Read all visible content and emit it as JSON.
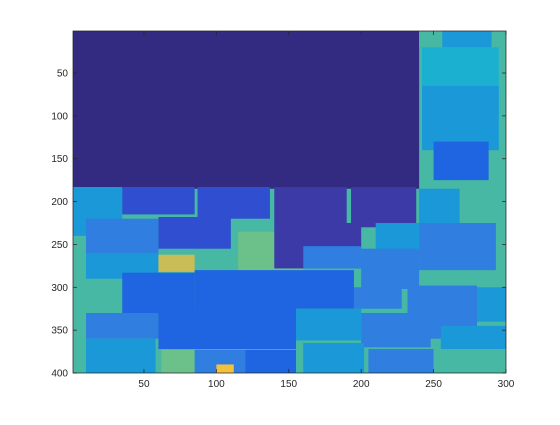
{
  "chart_data": {
    "type": "heatmap",
    "title": "",
    "xlabel": "",
    "ylabel": "",
    "xlim": [
      1,
      300
    ],
    "ylim": [
      1,
      400
    ],
    "y_reversed": true,
    "x_ticks": [
      50,
      100,
      150,
      200,
      250,
      300
    ],
    "x_tick_labels": [
      "50",
      "100",
      "150",
      "200",
      "250",
      "300"
    ],
    "y_ticks": [
      50,
      100,
      150,
      200,
      250,
      300,
      350,
      400
    ],
    "y_tick_labels": [
      "50",
      "100",
      "150",
      "200",
      "250",
      "300",
      "350",
      "400"
    ],
    "colormap": "parula",
    "grid": false,
    "legend": "none",
    "palette": {
      "dark-indigo": "#332a82",
      "indigo": "#3b3aa6",
      "royal-blue": "#2f4fd0",
      "bright-blue": "#1f64e0",
      "azure": "#2f7ee0",
      "cyan-blue": "#1a98d8",
      "teal-cyan": "#1cb0d0",
      "sea-green": "#47b8a4",
      "mint-green": "#6cc08a",
      "khaki": "#c9bd57",
      "yellow-orange": "#f2c23f"
    },
    "regions": [
      {
        "x": [
          1,
          300
        ],
        "y": [
          1,
          400
        ],
        "color": "sea-green"
      },
      {
        "x": [
          1,
          240
        ],
        "y": [
          1,
          185
        ],
        "color": "dark-indigo"
      },
      {
        "x": [
          240,
          300
        ],
        "y": [
          1,
          20
        ],
        "color": "sea-green"
      },
      {
        "x": [
          256,
          290
        ],
        "y": [
          1,
          20
        ],
        "color": "cyan-blue"
      },
      {
        "x": [
          242,
          295
        ],
        "y": [
          20,
          100
        ],
        "color": "teal-cyan"
      },
      {
        "x": [
          242,
          295
        ],
        "y": [
          65,
          140
        ],
        "color": "cyan-blue"
      },
      {
        "x": [
          250,
          288
        ],
        "y": [
          130,
          175
        ],
        "color": "bright-blue"
      },
      {
        "x": [
          1,
          35
        ],
        "y": [
          183,
          240
        ],
        "color": "cyan-blue"
      },
      {
        "x": [
          35,
          85
        ],
        "y": [
          183,
          215
        ],
        "color": "royal-blue"
      },
      {
        "x": [
          87,
          137
        ],
        "y": [
          183,
          220
        ],
        "color": "royal-blue"
      },
      {
        "x": [
          140,
          190
        ],
        "y": [
          183,
          225
        ],
        "color": "indigo"
      },
      {
        "x": [
          193,
          238
        ],
        "y": [
          183,
          230
        ],
        "color": "indigo"
      },
      {
        "x": [
          240,
          268
        ],
        "y": [
          185,
          225
        ],
        "color": "cyan-blue"
      },
      {
        "x": [
          268,
          300
        ],
        "y": [
          185,
          225
        ],
        "color": "sea-green"
      },
      {
        "x": [
          60,
          110
        ],
        "y": [
          218,
          255
        ],
        "color": "royal-blue"
      },
      {
        "x": [
          10,
          60
        ],
        "y": [
          220,
          262
        ],
        "color": "azure"
      },
      {
        "x": [
          115,
          160
        ],
        "y": [
          235,
          280
        ],
        "color": "mint-green"
      },
      {
        "x": [
          140,
          200
        ],
        "y": [
          225,
          278
        ],
        "color": "indigo"
      },
      {
        "x": [
          210,
          240
        ],
        "y": [
          225,
          260
        ],
        "color": "cyan-blue"
      },
      {
        "x": [
          240,
          293
        ],
        "y": [
          225,
          280
        ],
        "color": "azure"
      },
      {
        "x": [
          10,
          60
        ],
        "y": [
          260,
          290
        ],
        "color": "cyan-blue"
      },
      {
        "x": [
          60,
          85
        ],
        "y": [
          262,
          282
        ],
        "color": "khaki"
      },
      {
        "x": [
          160,
          200
        ],
        "y": [
          252,
          278
        ],
        "color": "azure"
      },
      {
        "x": [
          200,
          240
        ],
        "y": [
          255,
          302
        ],
        "color": "azure"
      },
      {
        "x": [
          35,
          85
        ],
        "y": [
          283,
          330
        ],
        "color": "bright-blue"
      },
      {
        "x": [
          85,
          155
        ],
        "y": [
          280,
          330
        ],
        "color": "bright-blue"
      },
      {
        "x": [
          155,
          195
        ],
        "y": [
          280,
          325
        ],
        "color": "bright-blue"
      },
      {
        "x": [
          195,
          228
        ],
        "y": [
          300,
          325
        ],
        "color": "azure"
      },
      {
        "x": [
          232,
          280
        ],
        "y": [
          298,
          360
        ],
        "color": "azure"
      },
      {
        "x": [
          280,
          300
        ],
        "y": [
          300,
          340
        ],
        "color": "cyan-blue"
      },
      {
        "x": [
          10,
          60
        ],
        "y": [
          330,
          360
        ],
        "color": "azure"
      },
      {
        "x": [
          60,
          155
        ],
        "y": [
          325,
          372
        ],
        "color": "bright-blue"
      },
      {
        "x": [
          155,
          200
        ],
        "y": [
          325,
          362
        ],
        "color": "cyan-blue"
      },
      {
        "x": [
          200,
          248
        ],
        "y": [
          330,
          370
        ],
        "color": "azure"
      },
      {
        "x": [
          255,
          300
        ],
        "y": [
          345,
          372
        ],
        "color": "cyan-blue"
      },
      {
        "x": [
          10,
          58
        ],
        "y": [
          360,
          400
        ],
        "color": "cyan-blue"
      },
      {
        "x": [
          62,
          85
        ],
        "y": [
          373,
          400
        ],
        "color": "mint-green"
      },
      {
        "x": [
          85,
          120
        ],
        "y": [
          373,
          400
        ],
        "color": "azure"
      },
      {
        "x": [
          100,
          112
        ],
        "y": [
          390,
          400
        ],
        "color": "yellow-orange"
      },
      {
        "x": [
          120,
          155
        ],
        "y": [
          373,
          400
        ],
        "color": "bright-blue"
      },
      {
        "x": [
          160,
          202
        ],
        "y": [
          365,
          400
        ],
        "color": "cyan-blue"
      },
      {
        "x": [
          205,
          250
        ],
        "y": [
          372,
          400
        ],
        "color": "azure"
      },
      {
        "x": [
          250,
          300
        ],
        "y": [
          372,
          400
        ],
        "color": "sea-green"
      }
    ]
  }
}
